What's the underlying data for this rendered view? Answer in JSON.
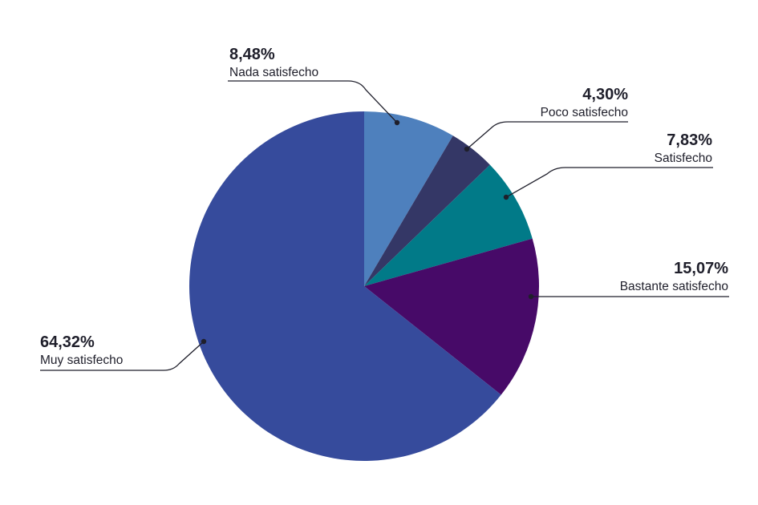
{
  "chart_data": {
    "type": "pie",
    "categories": [
      "Nada satisfecho",
      "Poco satisfecho",
      "Satisfecho",
      "Bastante satisfecho",
      "Muy satisfecho"
    ],
    "values": [
      8.48,
      4.3,
      7.83,
      15.07,
      64.32
    ],
    "value_labels": [
      "8,48%",
      "4,30%",
      "7,83%",
      "15,07%",
      "64,32%"
    ],
    "colors": [
      "#4e80bd",
      "#343766",
      "#017a88",
      "#470a68",
      "#364b9c"
    ],
    "start_angle": "12 o'clock",
    "direction": "clockwise",
    "title": ""
  }
}
